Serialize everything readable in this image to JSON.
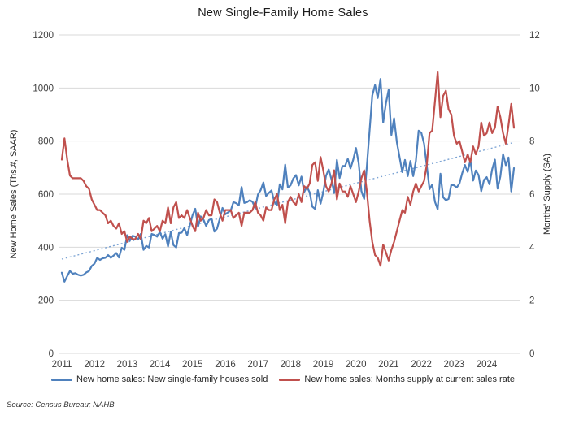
{
  "title": "New Single-Family Home Sales",
  "source_note": "Source: Census Bureau; NAHB",
  "chart_data": {
    "type": "line",
    "title": "New Single-Family Home Sales",
    "x_period": "monthly, Jan 2011 - Nov 2024",
    "x_tick_labels": [
      "2011",
      "2012",
      "2013",
      "2014",
      "2015",
      "2016",
      "2017",
      "2018",
      "2019",
      "2020",
      "2021",
      "2022",
      "2023",
      "2024"
    ],
    "grid": true,
    "legend_position": "bottom",
    "left_axis": {
      "label": "New Home Sales (Ths.#, SAAR)",
      "min": 0,
      "max": 1200,
      "step": 200,
      "tick_labels": [
        "0",
        "200",
        "400",
        "600",
        "800",
        "1000",
        "1200"
      ]
    },
    "right_axis": {
      "label": "Months' Supply (SA)",
      "min": 0,
      "max": 12,
      "step": 2,
      "tick_labels": [
        "0",
        "2",
        "4",
        "6",
        "8",
        "10",
        "12"
      ]
    },
    "trendline": {
      "name": "linear-trend-of-sales",
      "axis": "left",
      "start": 355,
      "end": 795,
      "color": "#7ba3d4",
      "style": "dotted"
    },
    "series": [
      {
        "name": "New home sales: New single-family houses sold",
        "axis": "left",
        "color": "#4f81bd",
        "values": [
          304,
          270,
          291,
          310,
          300,
          302,
          296,
          293,
          296,
          305,
          310,
          329,
          338,
          360,
          352,
          358,
          360,
          370,
          360,
          368,
          378,
          361,
          398,
          390,
          445,
          425,
          443,
          440,
          429,
          450,
          390,
          405,
          399,
          450,
          446,
          440,
          457,
          432,
          449,
          403,
          457,
          408,
          399,
          453,
          455,
          472,
          445,
          482,
          521,
          545,
          477,
          516,
          504,
          480,
          502,
          507,
          459,
          470,
          508,
          548,
          524,
          531,
          538,
          570,
          566,
          558,
          627,
          567,
          570,
          577,
          571,
          548,
          599,
          615,
          644,
          593,
          605,
          614,
          571,
          559,
          637,
          618,
          711,
          625,
          633,
          659,
          672,
          633,
          666,
          608,
          628,
          607,
          553,
          544,
          615,
          564,
          607,
          669,
          693,
          656,
          604,
          729,
          661,
          706,
          706,
          733,
          697,
          730,
          774,
          716,
          612,
          582,
          704,
          840,
          972,
          1011,
          962,
          1034,
          870,
          943,
          993,
          823,
          886,
          796,
          740,
          683,
          729,
          668,
          725,
          668,
          725,
          839,
          831,
          790,
          707,
          619,
          636,
          571,
          543,
          677,
          588,
          577,
          582,
          636,
          633,
          625,
          640,
          679,
          710,
          684,
          728,
          651,
          689,
          672,
          611,
          654,
          664,
          637,
          693,
          730,
          621,
          667,
          751,
          709,
          738,
          610,
          698
        ]
      },
      {
        "name": "New home sales: Months supply at current sales rate",
        "axis": "right",
        "color": "#c0504d",
        "values": [
          7.3,
          8.1,
          7.3,
          6.7,
          6.6,
          6.6,
          6.6,
          6.6,
          6.5,
          6.3,
          6.2,
          5.8,
          5.6,
          5.4,
          5.4,
          5.3,
          5.2,
          4.9,
          5.0,
          4.8,
          4.7,
          4.9,
          4.5,
          4.6,
          4.2,
          4.4,
          4.3,
          4.3,
          4.5,
          4.3,
          5.0,
          4.9,
          5.1,
          4.6,
          4.7,
          4.8,
          4.6,
          5.0,
          4.9,
          5.5,
          4.9,
          5.5,
          5.7,
          5.1,
          5.2,
          5.1,
          5.4,
          5.1,
          4.8,
          4.6,
          5.3,
          5.0,
          5.1,
          5.4,
          5.2,
          5.2,
          5.8,
          5.7,
          5.3,
          5.0,
          5.4,
          5.4,
          5.4,
          5.1,
          5.2,
          5.3,
          4.8,
          5.3,
          5.3,
          5.3,
          5.4,
          5.7,
          5.3,
          5.2,
          5.0,
          5.5,
          5.4,
          5.4,
          5.8,
          6.0,
          5.4,
          5.6,
          4.9,
          5.7,
          5.9,
          5.7,
          5.6,
          6.0,
          5.7,
          6.3,
          6.2,
          6.4,
          7.1,
          7.2,
          6.5,
          7.4,
          6.9,
          6.3,
          6.1,
          6.4,
          6.9,
          5.8,
          6.4,
          6.1,
          6.1,
          5.9,
          6.3,
          6.0,
          5.7,
          6.1,
          6.6,
          6.9,
          6.1,
          5.0,
          4.2,
          3.7,
          3.6,
          3.3,
          4.1,
          3.8,
          3.5,
          3.9,
          4.2,
          4.6,
          5.0,
          5.4,
          5.3,
          5.9,
          5.6,
          6.1,
          6.4,
          6.1,
          6.3,
          6.5,
          7.1,
          8.3,
          8.4,
          9.5,
          10.6,
          8.9,
          9.7,
          9.9,
          9.2,
          9.0,
          8.2,
          7.9,
          8.0,
          7.6,
          7.2,
          7.5,
          7.2,
          7.8,
          7.5,
          7.8,
          8.7,
          8.2,
          8.3,
          8.7,
          8.3,
          8.5,
          9.3,
          8.9,
          8.3,
          7.9,
          8.6,
          9.4,
          8.5
        ]
      }
    ],
    "style": {
      "gridline_color": "#d9d9d9",
      "tick_label_color": "#404040",
      "axis_title_color": "#262626"
    }
  }
}
